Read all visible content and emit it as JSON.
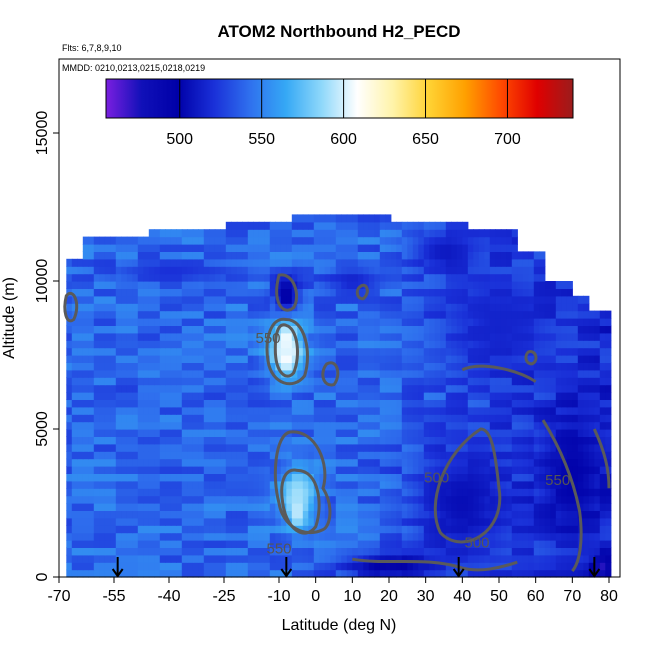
{
  "chart_data": {
    "type": "heatmap",
    "title": "ATOM2 Northbound H2_PECD",
    "subtitle_flights": "Flts: 6,7,8,9,10",
    "subtitle_dates": "MMDD: 0210,0213,0215,0218,0219",
    "xlabel": "Latitude (deg N)",
    "ylabel": "Altitude (m)",
    "xlim": [
      -70,
      83
    ],
    "ylim": [
      0,
      17500
    ],
    "xticks": [
      -70,
      -55,
      -40,
      -25,
      -10,
      0,
      10,
      20,
      30,
      40,
      50,
      60,
      70,
      80
    ],
    "xtick_labels": [
      "-70",
      "-55",
      "-40",
      "-25",
      "-10",
      "0",
      "10",
      "20",
      "30",
      "40",
      "50",
      "60",
      "70",
      "80"
    ],
    "yticks": [
      0,
      5000,
      10000,
      15000
    ],
    "ytick_labels": [
      "0",
      "5000",
      "10000",
      "15000"
    ],
    "colorbar": {
      "range": [
        455,
        740
      ],
      "ticks": [
        500,
        550,
        600,
        650,
        700
      ],
      "tick_labels": [
        "500",
        "550",
        "600",
        "650",
        "700"
      ],
      "colors": [
        "#7a1fe0",
        "#1010b8",
        "#0000a8",
        "#1a30d8",
        "#2f70ee",
        "#35a8f5",
        "#8fd8fa",
        "#ffffff",
        "#fff3a8",
        "#ffd233",
        "#ffa000",
        "#ff4a00",
        "#e00000",
        "#9b1c1c"
      ]
    },
    "contour_labels": [
      "550",
      "550",
      "500",
      "500",
      "550"
    ],
    "flight_arrows_lat": [
      -54,
      -8,
      39,
      76
    ],
    "field": {
      "lat_min": -68,
      "lat_max": 80,
      "altitude_band_top": [
        [
          -68,
          10700
        ],
        [
          -63,
          11400
        ],
        [
          -46,
          11700
        ],
        [
          -25,
          12100
        ],
        [
          -7,
          12200
        ],
        [
          20,
          12100
        ],
        [
          42,
          11700
        ],
        [
          55,
          10900
        ],
        [
          62,
          10100
        ],
        [
          70,
          9500
        ],
        [
          75,
          8900
        ],
        [
          80,
          8900
        ]
      ],
      "background_value": 540,
      "regions": [
        {
          "lat": -8,
          "alt": 9500,
          "lat_r": 4,
          "alt_r": 700,
          "value": 490
        },
        {
          "lat": -8,
          "alt": 7700,
          "lat_r": 2.5,
          "alt_r": 700,
          "value": 700
        },
        {
          "lat": -8,
          "alt": 7700,
          "lat_r": 6,
          "alt_r": 1100,
          "value": 600
        },
        {
          "lat": -5,
          "alt": 2400,
          "lat_r": 2,
          "alt_r": 600,
          "value": 650
        },
        {
          "lat": -5,
          "alt": 2700,
          "lat_r": 6,
          "alt_r": 1200,
          "value": 590
        },
        {
          "lat": 40,
          "alt": 2500,
          "lat_r": 14,
          "alt_r": 2200,
          "value": 505
        },
        {
          "lat": 20,
          "alt": 400,
          "lat_r": 14,
          "alt_r": 500,
          "value": 495
        },
        {
          "lat": 70,
          "alt": 3500,
          "lat_r": 10,
          "alt_r": 2500,
          "value": 500
        },
        {
          "lat": 78,
          "alt": 300,
          "lat_r": 3,
          "alt_r": 400,
          "value": 470
        },
        {
          "lat": 50,
          "alt": 8500,
          "lat_r": 15,
          "alt_r": 2000,
          "value": 515
        },
        {
          "lat": 35,
          "alt": 11000,
          "lat_r": 10,
          "alt_r": 800,
          "value": 510
        },
        {
          "lat": -40,
          "alt": 10300,
          "lat_r": 20,
          "alt_r": 400,
          "value": 520
        },
        {
          "lat": 10,
          "alt": 10000,
          "lat_r": 8,
          "alt_r": 500,
          "value": 515
        }
      ]
    }
  }
}
